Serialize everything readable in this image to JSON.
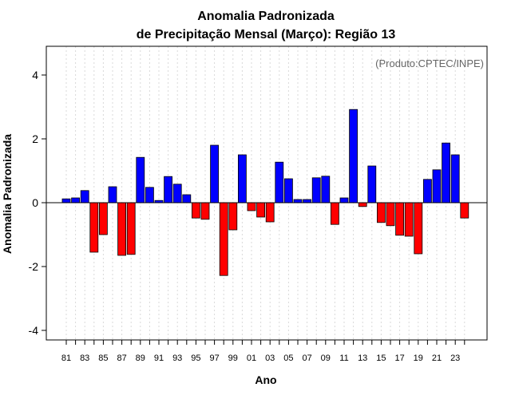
{
  "chart_data": {
    "type": "bar",
    "title_line1": "Anomalia Padronizada",
    "title_line2": "de Precipitação Mensal (Março): Região 13",
    "xlabel": "Ano",
    "ylabel": "Anomalia Padronizada",
    "credit": "(Produto:CPTEC/INPE)",
    "ylim": [
      -4.3,
      4.9
    ],
    "yticks": [
      -4,
      -2,
      0,
      2,
      4
    ],
    "ytick_labels": [
      "-4",
      "-2",
      "0",
      "2",
      "4"
    ],
    "grid": "vertical dotted",
    "positive_color": "#0000ff",
    "negative_color": "#ff0000",
    "categories": [
      "81",
      "82",
      "83",
      "84",
      "85",
      "86",
      "87",
      "88",
      "89",
      "90",
      "91",
      "92",
      "93",
      "94",
      "95",
      "96",
      "97",
      "98",
      "99",
      "00",
      "01",
      "02",
      "03",
      "04",
      "05",
      "06",
      "07",
      "08",
      "09",
      "10",
      "11",
      "12",
      "13",
      "14",
      "15",
      "16",
      "17",
      "18",
      "19",
      "20",
      "21",
      "22",
      "23",
      "24"
    ],
    "values": [
      0.12,
      0.15,
      0.38,
      -1.55,
      -1.0,
      0.5,
      -1.65,
      -1.62,
      1.42,
      0.48,
      0.07,
      0.82,
      0.58,
      0.25,
      -0.48,
      -0.52,
      1.8,
      -2.28,
      -0.85,
      1.5,
      -0.25,
      -0.45,
      -0.6,
      1.27,
      0.75,
      0.1,
      0.1,
      0.78,
      0.83,
      -0.68,
      0.15,
      2.92,
      -0.12,
      1.15,
      -0.62,
      -0.72,
      -1.02,
      -1.05,
      -1.6,
      0.73,
      1.03,
      1.87,
      1.5,
      -0.48
    ],
    "xtick_labels": [
      "81",
      "83",
      "85",
      "87",
      "89",
      "91",
      "93",
      "95",
      "97",
      "99",
      "01",
      "03",
      "05",
      "07",
      "09",
      "11",
      "13",
      "15",
      "17",
      "19",
      "21",
      "23"
    ]
  }
}
